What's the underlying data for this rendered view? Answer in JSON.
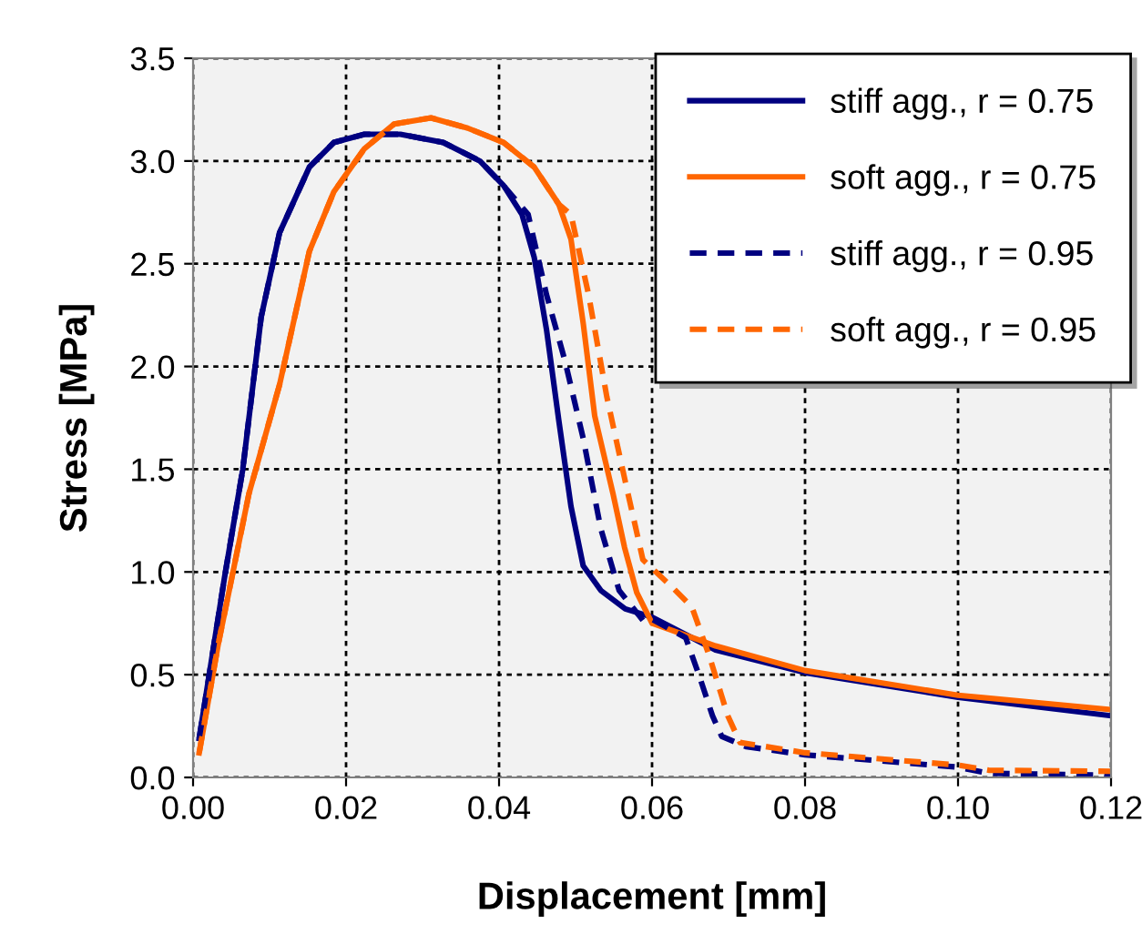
{
  "chart_data": {
    "type": "line",
    "xlabel": "Displacement [mm]",
    "ylabel": "Stress [MPa]",
    "xlim": [
      0,
      0.12
    ],
    "ylim": [
      0,
      3.5
    ],
    "xticks": [
      {
        "value": 0,
        "label": "0.00"
      },
      {
        "value": 0.02,
        "label": "0.02"
      },
      {
        "value": 0.04,
        "label": "0.04"
      },
      {
        "value": 0.06,
        "label": "0.06"
      },
      {
        "value": 0.08,
        "label": "0.08"
      },
      {
        "value": 0.1,
        "label": "0.10"
      },
      {
        "value": 0.12,
        "label": "0.12"
      }
    ],
    "yticks": [
      {
        "value": 0,
        "label": "0.0"
      },
      {
        "value": 0.5,
        "label": "0.5"
      },
      {
        "value": 1,
        "label": "1.0"
      },
      {
        "value": 1.5,
        "label": "1.5"
      },
      {
        "value": 2,
        "label": "2.0"
      },
      {
        "value": 2.5,
        "label": "2.5"
      },
      {
        "value": 3,
        "label": "3.0"
      },
      {
        "value": 3.5,
        "label": "3.5"
      }
    ],
    "grid": true,
    "legend": "top right",
    "marker": "none",
    "series": [
      {
        "name": "stiff agg., r = 0.75",
        "color": "#000080",
        "line_style": "solid",
        "x": [
          0.0008,
          0.0041,
          0.0065,
          0.0089,
          0.0113,
          0.0152,
          0.0184,
          0.0224,
          0.0271,
          0.0327,
          0.0375,
          0.0406,
          0.043,
          0.0446,
          0.0462,
          0.0478,
          0.0494,
          0.051,
          0.0533,
          0.0565,
          0.06,
          0.0683,
          0.08,
          0.1,
          0.12
        ],
        "values": [
          0.19,
          0.97,
          1.5,
          2.24,
          2.65,
          2.97,
          3.09,
          3.13,
          3.13,
          3.09,
          3.0,
          2.88,
          2.74,
          2.53,
          2.18,
          1.74,
          1.32,
          1.03,
          0.91,
          0.82,
          0.78,
          0.62,
          0.51,
          0.39,
          0.3
        ]
      },
      {
        "name": "soft agg., r = 0.75",
        "color": "#ff6600",
        "line_style": "solid",
        "x": [
          0.0008,
          0.0033,
          0.0073,
          0.0113,
          0.0152,
          0.0184,
          0.0224,
          0.0263,
          0.0311,
          0.0359,
          0.0406,
          0.0446,
          0.0478,
          0.0494,
          0.051,
          0.0525,
          0.0549,
          0.0564,
          0.058,
          0.06,
          0.0683,
          0.08,
          0.1,
          0.12
        ],
        "values": [
          0.12,
          0.65,
          1.38,
          1.91,
          2.56,
          2.85,
          3.06,
          3.18,
          3.21,
          3.16,
          3.09,
          2.97,
          2.79,
          2.62,
          2.21,
          1.76,
          1.38,
          1.12,
          0.9,
          0.75,
          0.64,
          0.52,
          0.4,
          0.33
        ]
      },
      {
        "name": "stiff agg., r = 0.95",
        "color": "#000080",
        "line_style": "dashed",
        "x": [
          0.0008,
          0.0041,
          0.0065,
          0.0089,
          0.0113,
          0.0152,
          0.0184,
          0.0224,
          0.0271,
          0.0327,
          0.0375,
          0.0406,
          0.0438,
          0.0462,
          0.0486,
          0.051,
          0.0533,
          0.0557,
          0.0589,
          0.06,
          0.0644,
          0.0663,
          0.0679,
          0.0691,
          0.0723,
          0.08,
          0.1,
          0.104,
          0.12
        ],
        "values": [
          0.19,
          0.97,
          1.5,
          2.24,
          2.65,
          2.97,
          3.09,
          3.13,
          3.13,
          3.09,
          3.0,
          2.88,
          2.74,
          2.35,
          2.03,
          1.65,
          1.21,
          0.91,
          0.76,
          0.77,
          0.68,
          0.48,
          0.3,
          0.2,
          0.15,
          0.11,
          0.05,
          0.02,
          0.01
        ]
      },
      {
        "name": "soft agg., r = 0.95",
        "color": "#ff6600",
        "line_style": "dashed",
        "x": [
          0.0008,
          0.0033,
          0.0073,
          0.0113,
          0.0152,
          0.0184,
          0.0224,
          0.0263,
          0.0311,
          0.0359,
          0.0406,
          0.0446,
          0.0478,
          0.0494,
          0.0517,
          0.0541,
          0.0565,
          0.0588,
          0.0628,
          0.0652,
          0.0675,
          0.0699,
          0.0715,
          0.08,
          0.1,
          0.104,
          0.12
        ],
        "values": [
          0.12,
          0.65,
          1.38,
          1.91,
          2.56,
          2.85,
          3.06,
          3.18,
          3.21,
          3.16,
          3.09,
          2.97,
          2.79,
          2.74,
          2.35,
          1.85,
          1.44,
          1.06,
          0.92,
          0.83,
          0.59,
          0.3,
          0.17,
          0.12,
          0.06,
          0.035,
          0.03
        ]
      }
    ]
  }
}
